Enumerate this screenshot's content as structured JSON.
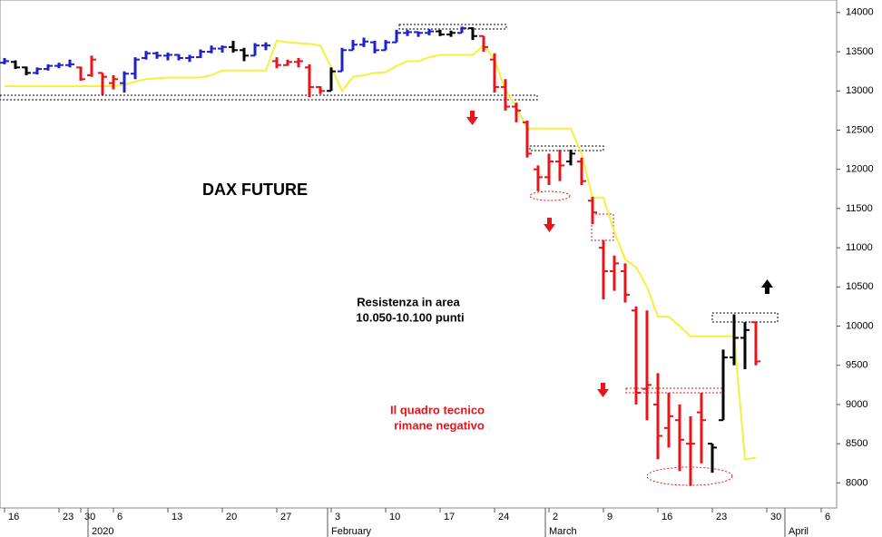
{
  "chart_data": {
    "type": "ohlc",
    "title": "DAX FUTURE",
    "annotations": [
      {
        "lines": [
          "Resistenza in area",
          "10.050-10.100 punti"
        ],
        "color": "#000000"
      },
      {
        "lines": [
          "Il quadro tecnico",
          "rimane negativo"
        ],
        "color": "#e8141c"
      }
    ],
    "categories": [
      "16",
      null,
      null,
      null,
      null,
      "23",
      null,
      "30",
      null,
      null,
      "6",
      null,
      null,
      null,
      null,
      "13",
      null,
      null,
      null,
      null,
      "20",
      null,
      null,
      null,
      null,
      "27",
      null,
      null,
      null,
      null,
      "3",
      null,
      null,
      null,
      null,
      "10",
      null,
      null,
      null,
      null,
      "17",
      null,
      null,
      null,
      null,
      "24",
      null,
      null,
      null,
      null,
      "2",
      null,
      null,
      null,
      null,
      "9",
      null,
      null,
      null,
      null,
      "16",
      null,
      null,
      null,
      null,
      "23",
      null,
      null,
      null,
      null,
      "30",
      null,
      null,
      null,
      null,
      "6"
    ],
    "months": [
      null,
      null,
      null,
      null,
      null,
      null,
      null,
      null,
      "2020",
      null,
      null,
      null,
      null,
      null,
      null,
      null,
      null,
      null,
      null,
      null,
      null,
      null,
      null,
      null,
      null,
      null,
      null,
      null,
      null,
      null,
      "February",
      null,
      null,
      null,
      null,
      null,
      null,
      null,
      null,
      null,
      null,
      null,
      null,
      null,
      null,
      null,
      null,
      null,
      null,
      null,
      "March",
      null,
      null,
      null,
      null,
      null,
      null,
      null,
      null,
      null,
      null,
      null,
      null,
      null,
      null,
      null,
      null,
      null,
      null,
      null,
      null,
      null,
      "April",
      null,
      null,
      null
    ],
    "open": [
      13360,
      13370,
      13300,
      13230,
      13280,
      13320,
      13330,
      13300,
      13200,
      13230,
      13100,
      13100,
      13220,
      13420,
      13480,
      13450,
      13460,
      13420,
      13430,
      13500,
      13540,
      13560,
      13520,
      13450,
      13580,
      13380,
      13330,
      13370,
      13300,
      13050,
      13000,
      13250,
      13520,
      13590,
      13620,
      13520,
      13620,
      13740,
      13750,
      13740,
      13760,
      13720,
      13740,
      13800,
      13700,
      13400,
      13050,
      12800,
      12600,
      12000,
      11900,
      12100,
      12100,
      12100,
      11600,
      11000,
      10700,
      10700,
      10200,
      9200,
      9000,
      8700,
      8800,
      8500,
      8900,
      8500,
      8800,
      9600,
      9850,
      10050,
      null,
      null,
      null,
      null,
      null,
      null
    ],
    "high": [
      13420,
      13390,
      13310,
      13300,
      13340,
      13360,
      13400,
      13310,
      13450,
      13230,
      13200,
      13250,
      13430,
      13510,
      13500,
      13490,
      13470,
      13460,
      13530,
      13580,
      13580,
      13640,
      13550,
      13610,
      13620,
      13430,
      13400,
      13420,
      13340,
      13060,
      13300,
      13550,
      13650,
      13680,
      13640,
      13650,
      13780,
      13780,
      13760,
      13790,
      13780,
      13770,
      13820,
      13810,
      13700,
      13480,
      13150,
      12850,
      12620,
      12050,
      12200,
      12250,
      12250,
      12150,
      11650,
      11100,
      10900,
      10800,
      10250,
      10200,
      9400,
      9150,
      9000,
      8850,
      9150,
      8500,
      9700,
      10150,
      10050,
      10050,
      null,
      null,
      null,
      null,
      null,
      null
    ],
    "low": [
      13340,
      13280,
      13200,
      13210,
      13260,
      13290,
      13300,
      13130,
      13180,
      12950,
      13020,
      12980,
      13150,
      13400,
      13410,
      13390,
      13390,
      13370,
      13420,
      13480,
      13490,
      13490,
      13380,
      13450,
      13520,
      13290,
      13320,
      13300,
      12920,
      12960,
      13000,
      13250,
      13520,
      13560,
      13480,
      13520,
      13620,
      13700,
      13690,
      13710,
      13700,
      13690,
      13740,
      13650,
      13500,
      12980,
      12750,
      12600,
      12150,
      11720,
      11800,
      11850,
      12050,
      11800,
      11300,
      10340,
      10450,
      10300,
      9000,
      8800,
      8300,
      8450,
      8150,
      7960,
      8250,
      8130,
      8800,
      9500,
      9450,
      9500,
      null,
      null,
      null,
      null,
      null,
      null
    ],
    "close": [
      13380,
      13300,
      13230,
      13280,
      13320,
      13330,
      13340,
      13150,
      13400,
      13180,
      13150,
      13220,
      13400,
      13480,
      13450,
      13460,
      13420,
      13430,
      13500,
      13540,
      13560,
      13520,
      13450,
      13580,
      13580,
      13330,
      13370,
      13380,
      13050,
      13000,
      13250,
      13520,
      13590,
      13630,
      13520,
      13620,
      13740,
      13750,
      13740,
      13760,
      13720,
      13740,
      13800,
      13700,
      13560,
      13050,
      12800,
      12750,
      12200,
      11900,
      12100,
      12050,
      12200,
      11850,
      11450,
      10700,
      10800,
      10400,
      9150,
      9250,
      8600,
      8850,
      8550,
      8500,
      8800,
      8450,
      9600,
      9850,
      9950,
      9550,
      null,
      null,
      null,
      null,
      null,
      null
    ],
    "bar_colors": [
      "#1f1fcc",
      "#000000",
      "#000000",
      "#1f1fcc",
      "#1f1fcc",
      "#1f1fcc",
      "#1f1fcc",
      "#e8141c",
      "#e8141c",
      "#e8141c",
      "#e8141c",
      "#1f1fcc",
      "#1f1fcc",
      "#1f1fcc",
      "#1f1fcc",
      "#1f1fcc",
      "#1f1fcc",
      "#1f1fcc",
      "#1f1fcc",
      "#1f1fcc",
      "#1f1fcc",
      "#000000",
      "#000000",
      "#1f1fcc",
      "#1f1fcc",
      "#e8141c",
      "#e8141c",
      "#e8141c",
      "#e8141c",
      "#e8141c",
      "#000000",
      "#1f1fcc",
      "#1f1fcc",
      "#1f1fcc",
      "#1f1fcc",
      "#1f1fcc",
      "#1f1fcc",
      "#1f1fcc",
      "#1f1fcc",
      "#1f1fcc",
      "#000000",
      "#000000",
      "#1f1fcc",
      "#000000",
      "#e8141c",
      "#e8141c",
      "#e8141c",
      "#e8141c",
      "#e8141c",
      "#e8141c",
      "#e8141c",
      "#e8141c",
      "#000000",
      "#e8141c",
      "#e8141c",
      "#e8141c",
      "#e8141c",
      "#e8141c",
      "#e8141c",
      "#e8141c",
      "#e8141c",
      "#e8141c",
      "#e8141c",
      "#e8141c",
      "#e8141c",
      "#000000",
      "#000000",
      "#000000",
      "#000000",
      "#e8141c",
      null,
      null,
      null,
      null,
      null,
      null
    ],
    "line": {
      "color": "#f5f03c",
      "values": [
        13060,
        13060,
        13060,
        13060,
        13060,
        13060,
        13060,
        13060,
        13060,
        13060,
        13060,
        13080,
        13120,
        13150,
        13160,
        13170,
        13170,
        13170,
        13170,
        13200,
        13260,
        13260,
        13260,
        13260,
        13260,
        13640,
        13620,
        13610,
        13600,
        13580,
        13300,
        13000,
        13180,
        13200,
        13230,
        13240,
        13320,
        13380,
        13380,
        13430,
        13460,
        13460,
        13460,
        13460,
        13580,
        13400,
        13000,
        12800,
        12520,
        12520,
        12520,
        12520,
        12520,
        12200,
        11640,
        11640,
        11200,
        10850,
        10750,
        10500,
        10120,
        10120,
        10000,
        9870,
        9870,
        9870,
        9870,
        9870,
        8300,
        8320,
        null,
        null,
        null,
        null,
        null,
        null
      ]
    },
    "ylim": [
      7680,
      14160
    ],
    "yticks": [
      8000,
      8500,
      9000,
      9500,
      10000,
      10500,
      11000,
      11500,
      12000,
      12500,
      13000,
      13500,
      14000
    ],
    "y_axis_side": "right"
  }
}
